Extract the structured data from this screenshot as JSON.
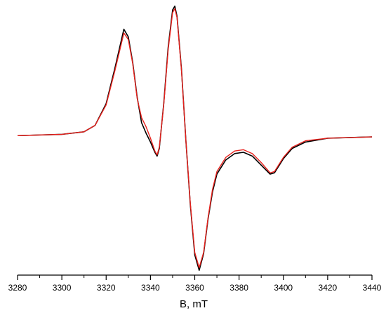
{
  "chart_data": {
    "type": "line",
    "x_label": "B, mT",
    "x": [
      3280,
      3300,
      3310,
      3315,
      3320,
      3324,
      3328,
      3330,
      3332,
      3334,
      3336,
      3338,
      3340,
      3342,
      3343,
      3344,
      3346,
      3348,
      3350,
      3351,
      3352,
      3354,
      3356,
      3358,
      3360,
      3362,
      3364,
      3366,
      3368,
      3370,
      3374,
      3378,
      3382,
      3386,
      3390,
      3394,
      3396,
      3400,
      3404,
      3410,
      3420,
      3440
    ],
    "series": [
      {
        "color": "#000000",
        "values": [
          0,
          0.01,
          0.03,
          0.08,
          0.25,
          0.53,
          0.83,
          0.77,
          0.57,
          0.3,
          0.1,
          0.02,
          -0.05,
          -0.13,
          -0.16,
          -0.1,
          0.25,
          0.69,
          0.98,
          1.01,
          0.93,
          0.52,
          -0.04,
          -0.54,
          -0.93,
          -1.05,
          -0.92,
          -0.65,
          -0.44,
          -0.3,
          -0.19,
          -0.14,
          -0.13,
          -0.16,
          -0.23,
          -0.3,
          -0.29,
          -0.18,
          -0.1,
          -0.05,
          -0.02,
          -0.01
        ]
      },
      {
        "color": "#e8211c",
        "values": [
          0,
          0.01,
          0.03,
          0.08,
          0.24,
          0.51,
          0.8,
          0.75,
          0.56,
          0.29,
          0.14,
          0.07,
          -0.02,
          -0.12,
          -0.15,
          -0.09,
          0.24,
          0.67,
          0.96,
          0.99,
          0.92,
          0.51,
          -0.04,
          -0.53,
          -0.91,
          -1.03,
          -0.91,
          -0.64,
          -0.42,
          -0.28,
          -0.17,
          -0.12,
          -0.11,
          -0.14,
          -0.21,
          -0.29,
          -0.28,
          -0.17,
          -0.09,
          -0.04,
          -0.02,
          -0.01
        ]
      }
    ],
    "xlim": [
      3280,
      3440
    ],
    "xticks": [
      3280,
      3300,
      3320,
      3340,
      3360,
      3380,
      3400,
      3420,
      3440
    ],
    "xminorticks": [
      3290,
      3310,
      3330,
      3350,
      3370,
      3390,
      3410,
      3430
    ],
    "ylim": [
      -1.08,
      1.05
    ]
  }
}
